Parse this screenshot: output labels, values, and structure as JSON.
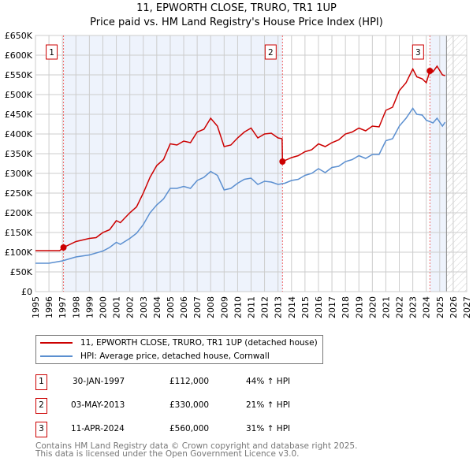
{
  "chart_data": {
    "type": "line",
    "title": "11, EPWORTH CLOSE, TRURO, TR1 1UP",
    "subtitle": "Price paid vs. HM Land Registry's House Price Index (HPI)",
    "xlim": [
      1995,
      2027
    ],
    "ylim": [
      0,
      650000
    ],
    "x_ticks": [
      "1995",
      "1996",
      "1997",
      "1998",
      "1999",
      "2000",
      "2001",
      "2002",
      "2003",
      "2004",
      "2005",
      "2006",
      "2007",
      "2008",
      "2009",
      "2010",
      "2011",
      "2012",
      "2013",
      "2014",
      "2015",
      "2016",
      "2017",
      "2018",
      "2019",
      "2020",
      "2021",
      "2022",
      "2023",
      "2024",
      "2025",
      "2026",
      "2027"
    ],
    "y_ticks": [
      {
        "v": 0,
        "l": "£0"
      },
      {
        "v": 50000,
        "l": "£50K"
      },
      {
        "v": 100000,
        "l": "£100K"
      },
      {
        "v": 150000,
        "l": "£150K"
      },
      {
        "v": 200000,
        "l": "£200K"
      },
      {
        "v": 250000,
        "l": "£250K"
      },
      {
        "v": 300000,
        "l": "£300K"
      },
      {
        "v": 350000,
        "l": "£350K"
      },
      {
        "v": 400000,
        "l": "£400K"
      },
      {
        "v": 450000,
        "l": "£450K"
      },
      {
        "v": 500000,
        "l": "£500K"
      },
      {
        "v": 550000,
        "l": "£550K"
      },
      {
        "v": 600000,
        "l": "£600K"
      },
      {
        "v": 650000,
        "l": "£650K"
      }
    ],
    "grid": true,
    "forecast_from": 2025.5,
    "series": [
      {
        "name": "11, EPWORTH CLOSE, TRURO, TR1 1UP (detached house)",
        "color": "#cc0000",
        "points": [
          [
            1995,
            104
          ],
          [
            1996,
            104
          ],
          [
            1996.8,
            104
          ],
          [
            1997.08,
            112
          ],
          [
            1998,
            127
          ],
          [
            1999,
            135
          ],
          [
            1999.5,
            137
          ],
          [
            2000,
            150
          ],
          [
            2000.5,
            157
          ],
          [
            2001,
            180
          ],
          [
            2001.3,
            175
          ],
          [
            2002,
            200
          ],
          [
            2002.5,
            215
          ],
          [
            2003,
            250
          ],
          [
            2003.5,
            290
          ],
          [
            2004,
            320
          ],
          [
            2004.5,
            335
          ],
          [
            2005,
            375
          ],
          [
            2005.5,
            372
          ],
          [
            2006,
            382
          ],
          [
            2006.5,
            378
          ],
          [
            2007,
            405
          ],
          [
            2007.5,
            412
          ],
          [
            2008,
            440
          ],
          [
            2008.5,
            420
          ],
          [
            2009,
            368
          ],
          [
            2009.5,
            372
          ],
          [
            2010,
            390
          ],
          [
            2010.5,
            405
          ],
          [
            2011,
            415
          ],
          [
            2011.5,
            390
          ],
          [
            2012,
            400
          ],
          [
            2012.5,
            402
          ],
          [
            2013,
            390
          ],
          [
            2013.3,
            388
          ],
          [
            2013.33,
            330
          ],
          [
            2014,
            340
          ],
          [
            2014.5,
            345
          ],
          [
            2015,
            355
          ],
          [
            2015.5,
            360
          ],
          [
            2016,
            375
          ],
          [
            2016.5,
            368
          ],
          [
            2017,
            378
          ],
          [
            2017.5,
            385
          ],
          [
            2018,
            400
          ],
          [
            2018.5,
            405
          ],
          [
            2019,
            415
          ],
          [
            2019.5,
            408
          ],
          [
            2020,
            420
          ],
          [
            2020.5,
            418
          ],
          [
            2021,
            460
          ],
          [
            2021.5,
            468
          ],
          [
            2022,
            510
          ],
          [
            2022.5,
            530
          ],
          [
            2023,
            565
          ],
          [
            2023.3,
            545
          ],
          [
            2023.7,
            540
          ],
          [
            2024,
            530
          ],
          [
            2024.27,
            560
          ],
          [
            2024.5,
            558
          ],
          [
            2024.8,
            572
          ],
          [
            2025.2,
            550
          ],
          [
            2025.4,
            548
          ]
        ]
      },
      {
        "name": "HPI: Average price, detached house, Cornwall",
        "color": "#5b8fd0",
        "points": [
          [
            1995,
            72
          ],
          [
            1996,
            72
          ],
          [
            1997,
            78
          ],
          [
            1998,
            88
          ],
          [
            1999,
            93
          ],
          [
            2000,
            103
          ],
          [
            2000.5,
            112
          ],
          [
            2001,
            125
          ],
          [
            2001.3,
            120
          ],
          [
            2002,
            135
          ],
          [
            2002.5,
            148
          ],
          [
            2003,
            170
          ],
          [
            2003.5,
            200
          ],
          [
            2004,
            220
          ],
          [
            2004.5,
            235
          ],
          [
            2005,
            262
          ],
          [
            2005.5,
            262
          ],
          [
            2006,
            267
          ],
          [
            2006.5,
            262
          ],
          [
            2007,
            282
          ],
          [
            2007.5,
            290
          ],
          [
            2008,
            305
          ],
          [
            2008.5,
            295
          ],
          [
            2009,
            258
          ],
          [
            2009.5,
            262
          ],
          [
            2010,
            275
          ],
          [
            2010.5,
            285
          ],
          [
            2011,
            288
          ],
          [
            2011.5,
            272
          ],
          [
            2012,
            280
          ],
          [
            2012.5,
            278
          ],
          [
            2013,
            272
          ],
          [
            2013.5,
            275
          ],
          [
            2014,
            282
          ],
          [
            2014.5,
            285
          ],
          [
            2015,
            295
          ],
          [
            2015.5,
            300
          ],
          [
            2016,
            312
          ],
          [
            2016.5,
            302
          ],
          [
            2017,
            315
          ],
          [
            2017.5,
            318
          ],
          [
            2018,
            330
          ],
          [
            2018.5,
            335
          ],
          [
            2019,
            345
          ],
          [
            2019.5,
            338
          ],
          [
            2020,
            348
          ],
          [
            2020.5,
            348
          ],
          [
            2021,
            383
          ],
          [
            2021.5,
            388
          ],
          [
            2022,
            420
          ],
          [
            2022.5,
            440
          ],
          [
            2023,
            465
          ],
          [
            2023.3,
            450
          ],
          [
            2023.7,
            448
          ],
          [
            2024,
            435
          ],
          [
            2024.5,
            428
          ],
          [
            2024.8,
            440
          ],
          [
            2025.2,
            420
          ],
          [
            2025.4,
            430
          ]
        ]
      }
    ],
    "sales": [
      {
        "label": "1",
        "x": 1997.08,
        "price": 112000,
        "date": "30-JAN-1997",
        "price_text": "£112,000",
        "hpi_text": "44% ↑ HPI"
      },
      {
        "label": "2",
        "x": 2013.33,
        "price": 330000,
        "date": "03-MAY-2013",
        "price_text": "£330,000",
        "hpi_text": "21% ↑ HPI"
      },
      {
        "label": "3",
        "x": 2024.27,
        "price": 560000,
        "date": "11-APR-2024",
        "price_text": "£560,000",
        "hpi_text": "31% ↑ HPI"
      }
    ]
  },
  "legend": {
    "property": "11, EPWORTH CLOSE, TRURO, TR1 1UP (detached house)",
    "hpi": "HPI: Average price, detached house, Cornwall"
  },
  "footer": {
    "line1": "Contains HM Land Registry data © Crown copyright and database right 2025.",
    "line2": "This data is licensed under the Open Government Licence v3.0."
  }
}
